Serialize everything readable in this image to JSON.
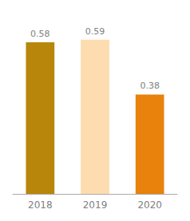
{
  "chart_data": {
    "type": "bar",
    "categories": [
      "2018",
      "2019",
      "2020"
    ],
    "values": [
      0.58,
      0.59,
      0.38
    ],
    "colors": [
      "#B8860B",
      "#FDDCB0",
      "#E8820C"
    ],
    "ylim": [
      0,
      0.65
    ],
    "data_labels": true,
    "tick_labels": "x",
    "grid": false
  }
}
